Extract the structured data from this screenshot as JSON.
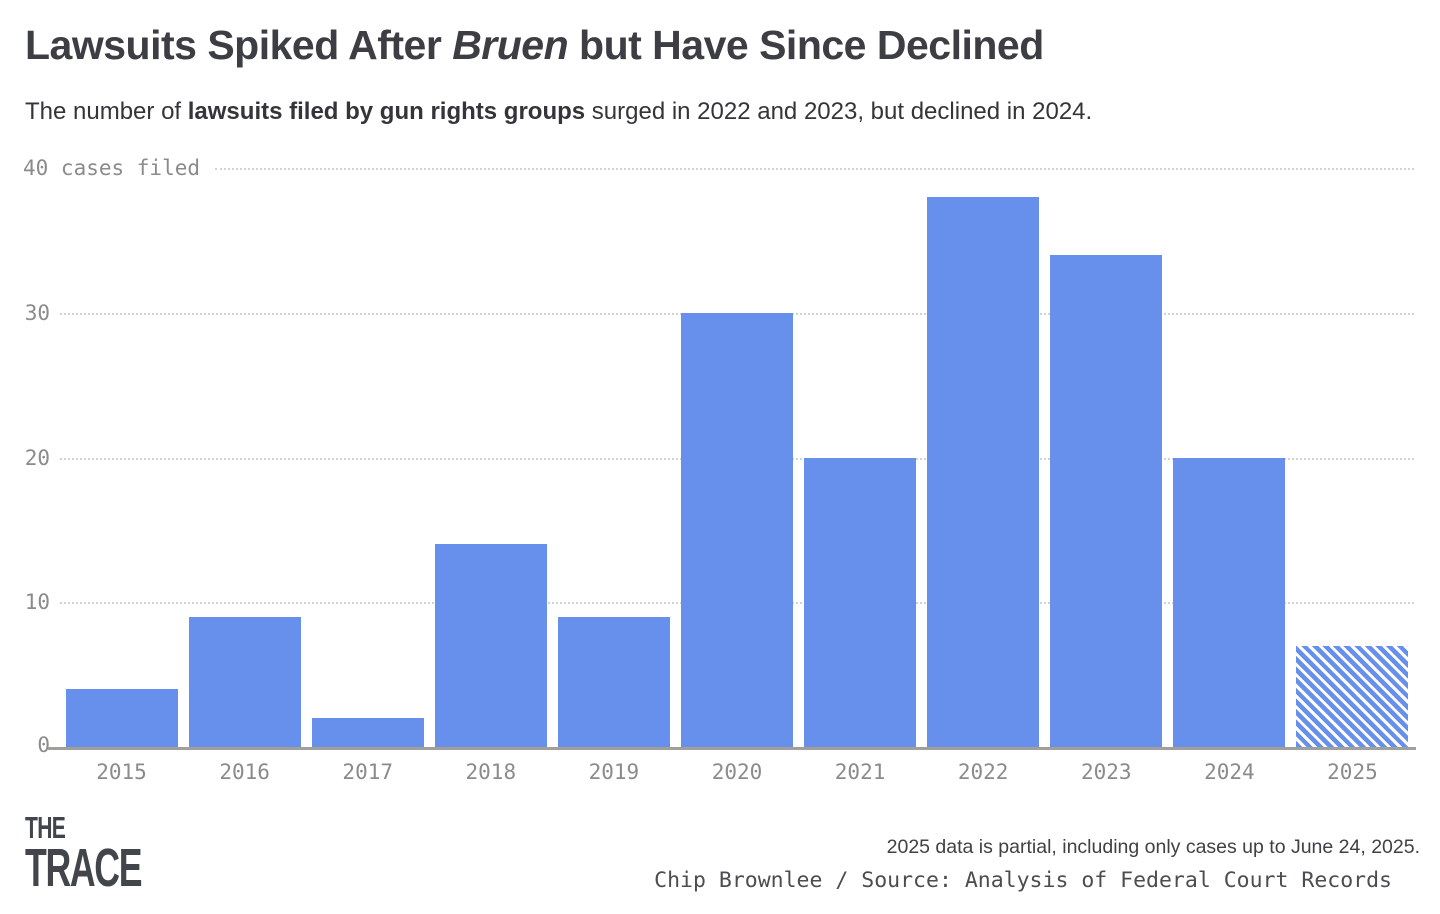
{
  "header": {
    "title_pre": "Lawsuits Spiked After ",
    "title_italic": "Bruen",
    "title_post": " but Have Since Declined",
    "subtitle_pre": "The number of ",
    "subtitle_highlight": "lawsuits filed by gun rights groups",
    "subtitle_post": " surged in 2022 and 2023, but declined in 2024."
  },
  "chart_data": {
    "type": "bar",
    "categories": [
      "2015",
      "2016",
      "2017",
      "2018",
      "2019",
      "2020",
      "2021",
      "2022",
      "2023",
      "2024",
      "2025"
    ],
    "values": [
      4,
      9,
      2,
      14,
      9,
      30,
      20,
      38,
      34,
      20,
      7
    ],
    "title": "",
    "xlabel": "",
    "ylabel": "cases filed",
    "y_axis_top_label": "40 cases filed",
    "yticks": [
      0,
      10,
      20,
      30,
      40
    ],
    "ylim": [
      0,
      40
    ],
    "grid": "horizontal-dotted",
    "legend": "none",
    "bar_color": "#6690ec",
    "partial_bar_category": "2025",
    "partial_bar_style": "diagonal-hatch"
  },
  "footer": {
    "logo_line1": "THE",
    "logo_line2": "TRACE",
    "note": "2025 data is partial, including only cases up to June 24, 2025.",
    "credit": "Chip Brownlee / Source: Analysis of Federal Court Records"
  },
  "colors": {
    "bar_blue": "#6690ec",
    "highlight_blue": "#5b7ee6",
    "title_text": "#3c3e44",
    "subtitle_text": "#33353a",
    "axis_text": "#8b8b8b",
    "gridline": "#d2d2d2",
    "baseline": "#a09f9b",
    "background": "#ffffff"
  }
}
